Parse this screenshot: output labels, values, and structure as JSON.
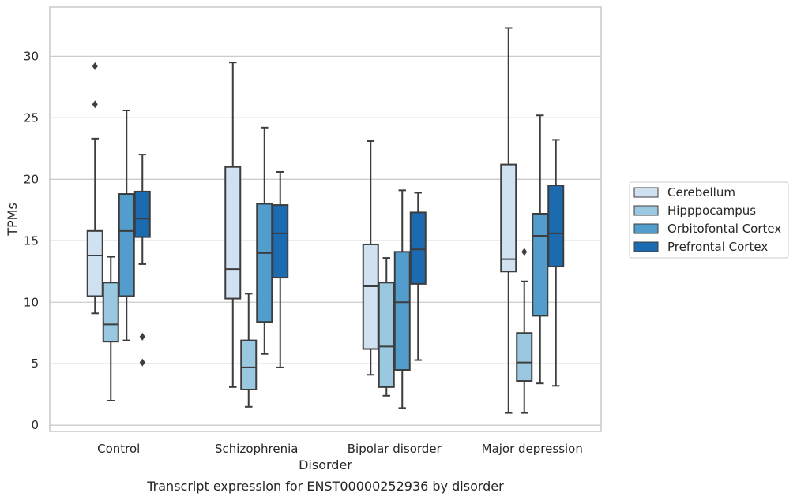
{
  "chart_data": {
    "type": "box",
    "xlabel": "Disorder",
    "ylabel": "TPMs",
    "caption": "Transcript expression for ENST00000252936 by disorder",
    "ylim": [
      -0.5,
      34
    ],
    "yticks": [
      "0",
      "5",
      "10",
      "15",
      "20",
      "25",
      "30"
    ],
    "grid": "horizontal",
    "legend_position": "right",
    "categories": [
      "Control",
      "Schizophrenia",
      "Bipolar disorder",
      "Major depression"
    ],
    "series": [
      {
        "name": "Cerebellum",
        "color": "#d0e1f2",
        "boxes": [
          {
            "whisker_low": 9.1,
            "q1": 10.5,
            "median": 13.8,
            "q3": 15.8,
            "whisker_high": 23.3,
            "outliers": [
              26.1,
              29.2
            ]
          },
          {
            "whisker_low": 3.1,
            "q1": 10.3,
            "median": 12.7,
            "q3": 21.0,
            "whisker_high": 29.5,
            "outliers": []
          },
          {
            "whisker_low": 4.1,
            "q1": 6.2,
            "median": 11.3,
            "q3": 14.7,
            "whisker_high": 23.1,
            "outliers": []
          },
          {
            "whisker_low": 1.0,
            "q1": 12.5,
            "median": 13.5,
            "q3": 21.2,
            "whisker_high": 32.3,
            "outliers": []
          }
        ]
      },
      {
        "name": "Hipppocampus",
        "color": "#9ac8e0",
        "boxes": [
          {
            "whisker_low": 2.0,
            "q1": 6.8,
            "median": 8.2,
            "q3": 11.6,
            "whisker_high": 13.7,
            "outliers": []
          },
          {
            "whisker_low": 1.5,
            "q1": 2.9,
            "median": 4.7,
            "q3": 6.9,
            "whisker_high": 10.7,
            "outliers": []
          },
          {
            "whisker_low": 2.4,
            "q1": 3.1,
            "median": 6.4,
            "q3": 11.6,
            "whisker_high": 13.6,
            "outliers": []
          },
          {
            "whisker_low": 1.0,
            "q1": 3.6,
            "median": 5.1,
            "q3": 7.5,
            "whisker_high": 11.7,
            "outliers": [
              14.1
            ]
          }
        ]
      },
      {
        "name": "Orbitofontal Cortex",
        "color": "#529dcc",
        "boxes": [
          {
            "whisker_low": 6.9,
            "q1": 10.5,
            "median": 15.8,
            "q3": 18.8,
            "whisker_high": 25.6,
            "outliers": []
          },
          {
            "whisker_low": 5.8,
            "q1": 8.4,
            "median": 14.0,
            "q3": 18.0,
            "whisker_high": 24.2,
            "outliers": []
          },
          {
            "whisker_low": 1.4,
            "q1": 4.5,
            "median": 10.0,
            "q3": 14.1,
            "whisker_high": 19.1,
            "outliers": []
          },
          {
            "whisker_low": 3.4,
            "q1": 8.9,
            "median": 15.4,
            "q3": 17.2,
            "whisker_high": 25.2,
            "outliers": []
          }
        ]
      },
      {
        "name": "Prefrontal Cortex",
        "color": "#1c6aaf",
        "boxes": [
          {
            "whisker_low": 13.1,
            "q1": 15.3,
            "median": 16.8,
            "q3": 19.0,
            "whisker_high": 22.0,
            "outliers": [
              5.1,
              7.2
            ]
          },
          {
            "whisker_low": 4.7,
            "q1": 12.0,
            "median": 15.6,
            "q3": 17.9,
            "whisker_high": 20.6,
            "outliers": []
          },
          {
            "whisker_low": 5.3,
            "q1": 11.5,
            "median": 14.3,
            "q3": 17.3,
            "whisker_high": 18.9,
            "outliers": []
          },
          {
            "whisker_low": 3.2,
            "q1": 12.9,
            "median": 15.6,
            "q3": 19.5,
            "whisker_high": 23.2,
            "outliers": []
          }
        ]
      }
    ]
  }
}
